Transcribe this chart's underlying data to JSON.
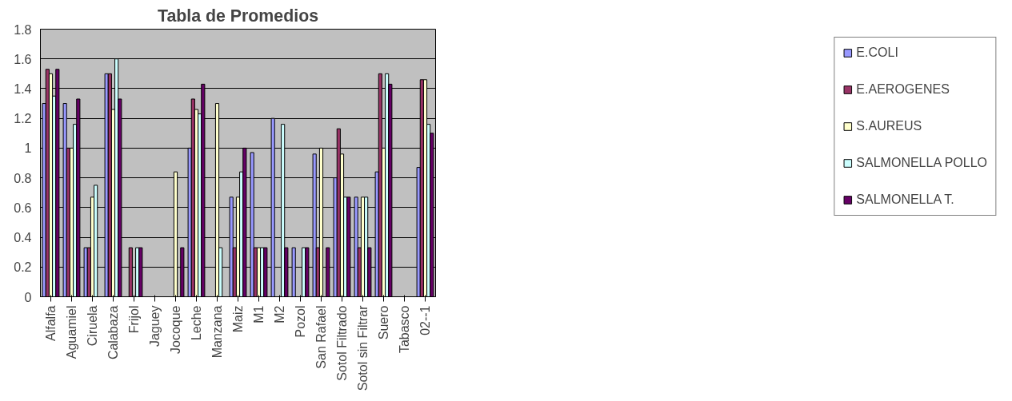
{
  "chart_data": {
    "type": "bar",
    "title": "Tabla de Promedios",
    "categories": [
      "Alfalfa",
      "Aguamiel",
      "Ciruela",
      "Calabaza",
      "Frijol",
      "Jaguey",
      "Jocoque",
      "Leche",
      "Manzana",
      "Maiz",
      "M1",
      "M2",
      "Pozol",
      "San Rafael",
      "Sotol Filtrado",
      "Sotol sin Filtrar",
      "Suero",
      "Tabasco",
      "02--1"
    ],
    "series": [
      {
        "name": "E.COLI",
        "color": "#9999ff",
        "values": [
          1.3,
          1.3,
          0.33,
          1.5,
          null,
          null,
          null,
          1.0,
          null,
          0.67,
          0.97,
          1.2,
          0.33,
          0.96,
          0.8,
          0.67,
          0.84,
          null,
          0.87
        ]
      },
      {
        "name": "E.AEROGENES",
        "color": "#993366",
        "values": [
          1.53,
          1.0,
          0.33,
          1.5,
          0.33,
          null,
          null,
          1.33,
          null,
          0.33,
          0.33,
          null,
          null,
          0.33,
          1.13,
          0.33,
          1.5,
          null,
          1.46
        ]
      },
      {
        "name": "S.AUREUS",
        "color": "#ffffcc",
        "values": [
          1.5,
          1.0,
          0.67,
          1.26,
          null,
          null,
          0.84,
          1.26,
          1.3,
          0.67,
          0.33,
          null,
          null,
          1.0,
          0.96,
          0.67,
          1.0,
          null,
          1.46
        ]
      },
      {
        "name": "SALMONELLA POLLO",
        "color": "#ccffff",
        "values": [
          1.35,
          1.16,
          0.75,
          1.6,
          0.33,
          null,
          null,
          1.23,
          0.33,
          0.84,
          0.33,
          1.16,
          0.33,
          null,
          0.67,
          0.67,
          1.5,
          null,
          1.16
        ]
      },
      {
        "name": "SALMONELLA T.",
        "color": "#660066",
        "values": [
          1.53,
          1.33,
          null,
          1.33,
          0.33,
          null,
          0.33,
          1.43,
          null,
          1.0,
          0.33,
          0.33,
          0.33,
          0.33,
          0.67,
          0.33,
          1.43,
          null,
          1.1
        ]
      }
    ],
    "ylim": [
      0,
      1.8
    ],
    "yticks": [
      0,
      0.2,
      0.4,
      0.6,
      0.8,
      1,
      1.2,
      1.4,
      1.6,
      1.8
    ],
    "grid": "y",
    "legend": "right"
  }
}
